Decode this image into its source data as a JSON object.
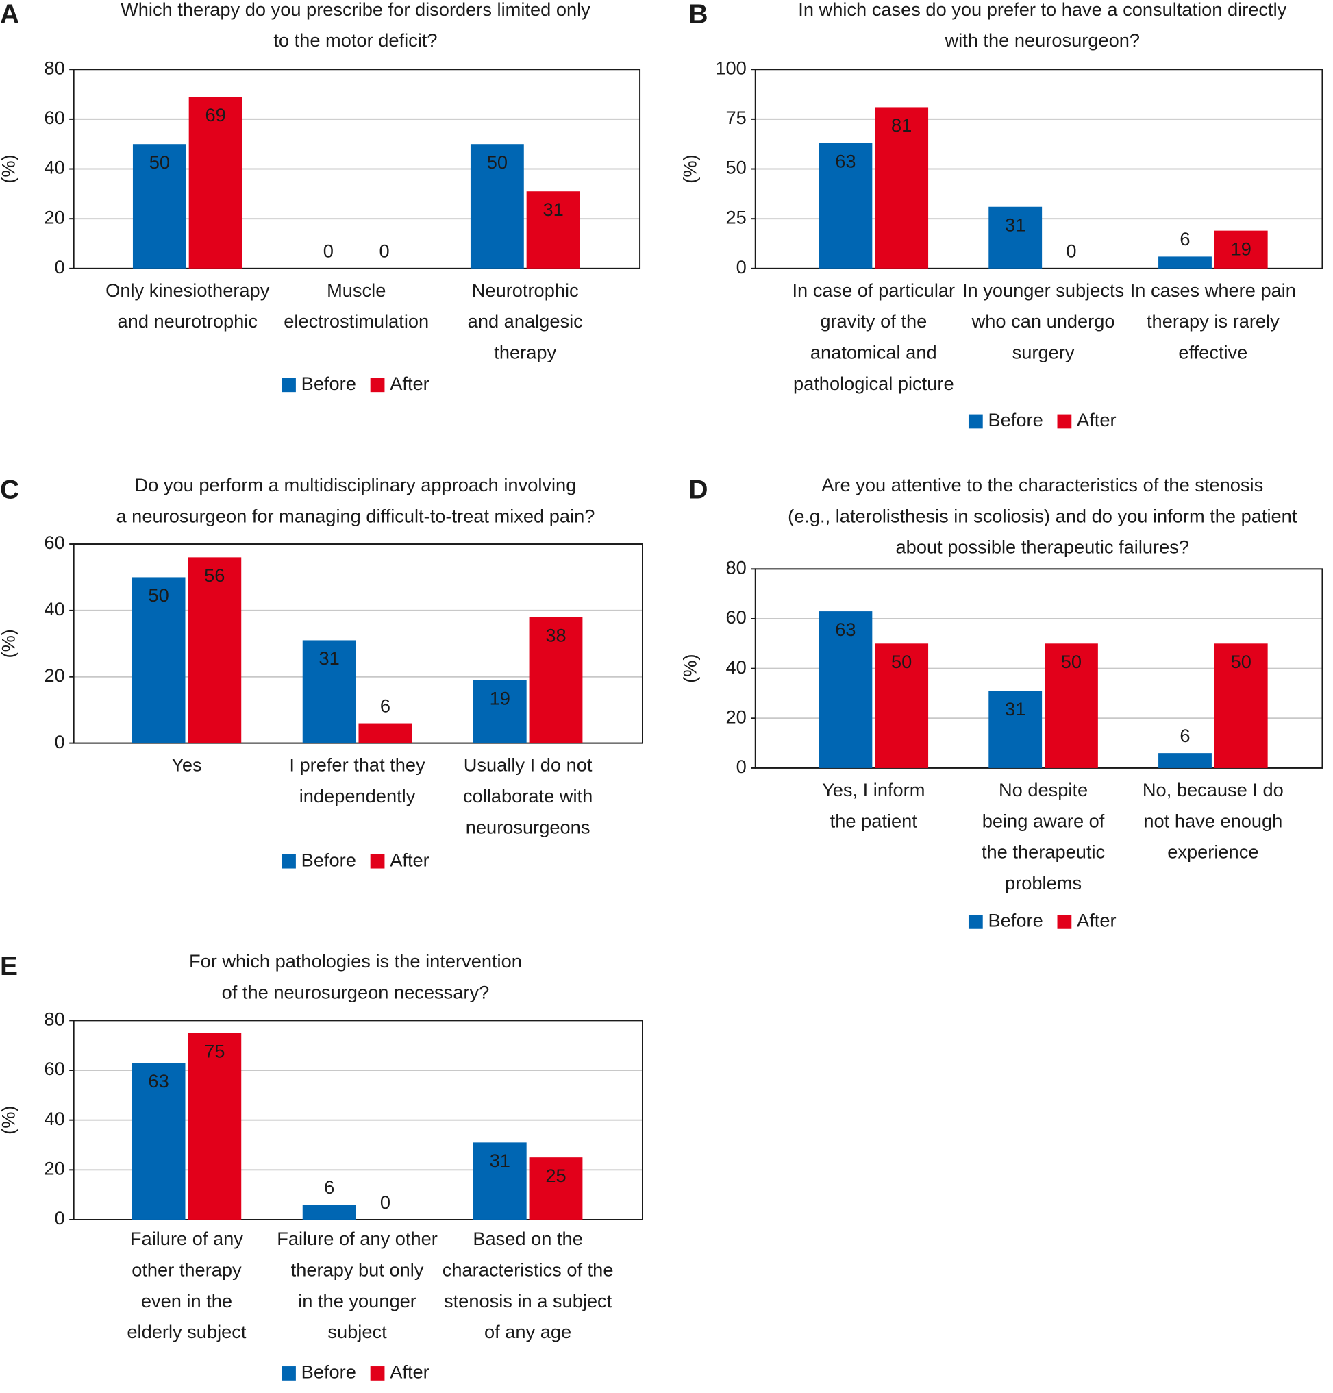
{
  "chart_data": [
    {
      "type": "bar",
      "panel": "A",
      "title": [
        "Which therapy do you prescribe for disorders limited only",
        "to the motor deficit?"
      ],
      "y_label": "(%)",
      "categories": [
        [
          "Only kinesiotherapy",
          "and neurotrophic"
        ],
        [
          "Muscle",
          "electrostimulation"
        ],
        [
          "Neurotrophic",
          "and analgesic",
          "therapy"
        ]
      ],
      "series": [
        {
          "name": "Before",
          "color": "#0066b3",
          "values": [
            50,
            0,
            50
          ]
        },
        {
          "name": "After",
          "color": "#e2001a",
          "values": [
            69,
            0,
            31
          ]
        }
      ],
      "ylim": [
        0,
        80
      ],
      "yticks": [
        0,
        20,
        40,
        60,
        80
      ],
      "grid": true
    },
    {
      "type": "bar",
      "panel": "B",
      "title": [
        "In which cases do you prefer to have a consultation directly",
        "with the neurosurgeon?"
      ],
      "y_label": "(%)",
      "categories": [
        [
          "In case of particular",
          "gravity of the",
          "anatomical and",
          "pathological picture"
        ],
        [
          "In younger subjects",
          "who can undergo",
          "surgery"
        ],
        [
          "In cases where pain",
          "therapy is rarely",
          "effective"
        ]
      ],
      "series": [
        {
          "name": "Before",
          "color": "#0066b3",
          "values": [
            63,
            31,
            6
          ]
        },
        {
          "name": "After",
          "color": "#e2001a",
          "values": [
            81,
            0,
            19
          ]
        }
      ],
      "ylim": [
        0,
        100
      ],
      "yticks": [
        0,
        25,
        50,
        75,
        100
      ],
      "grid": true
    },
    {
      "type": "bar",
      "panel": "C",
      "title": [
        "Do you perform a multidisciplinary approach involving",
        "a neurosurgeon for managing difficult-to-treat mixed pain?"
      ],
      "y_label": "(%)",
      "categories": [
        [
          "Yes"
        ],
        [
          "I prefer that they",
          "independently"
        ],
        [
          "Usually I do not",
          "collaborate with",
          "neurosurgeons"
        ]
      ],
      "series": [
        {
          "name": "Before",
          "color": "#0066b3",
          "values": [
            50,
            31,
            19
          ]
        },
        {
          "name": "After",
          "color": "#e2001a",
          "values": [
            56,
            6,
            38
          ]
        }
      ],
      "ylim": [
        0,
        60
      ],
      "yticks": [
        0,
        20,
        40,
        60
      ],
      "grid": true
    },
    {
      "type": "bar",
      "panel": "D",
      "title": [
        "Are you attentive to the characteristics of the stenosis",
        "(e.g., laterolisthesis in scoliosis) and do you inform the patient",
        "about possible therapeutic failures?"
      ],
      "y_label": "(%)",
      "categories": [
        [
          "Yes, I inform",
          "the patient"
        ],
        [
          "No despite",
          "being aware of",
          "the therapeutic",
          "problems"
        ],
        [
          "No, because I do",
          "not have enough",
          "experience"
        ]
      ],
      "series": [
        {
          "name": "Before",
          "color": "#0066b3",
          "values": [
            63,
            31,
            6
          ]
        },
        {
          "name": "After",
          "color": "#e2001a",
          "values": [
            50,
            50,
            50
          ]
        }
      ],
      "ylim": [
        0,
        80
      ],
      "yticks": [
        0,
        20,
        40,
        60,
        80
      ],
      "grid": true
    },
    {
      "type": "bar",
      "panel": "E",
      "title": [
        "For which pathologies is the intervention",
        "of the neurosurgeon necessary?"
      ],
      "y_label": "(%)",
      "categories": [
        [
          "Failure of any",
          "other therapy",
          "even in the",
          "elderly subject"
        ],
        [
          "Failure of any other",
          "therapy but only",
          "in the younger",
          "subject"
        ],
        [
          "Based on the",
          "characteristics of the",
          "stenosis in a subject",
          "of any age"
        ]
      ],
      "series": [
        {
          "name": "Before",
          "color": "#0066b3",
          "values": [
            63,
            6,
            31
          ]
        },
        {
          "name": "After",
          "color": "#e2001a",
          "values": [
            75,
            0,
            25
          ]
        }
      ],
      "ylim": [
        0,
        80
      ],
      "yticks": [
        0,
        20,
        40,
        60,
        80
      ],
      "grid": true
    }
  ]
}
